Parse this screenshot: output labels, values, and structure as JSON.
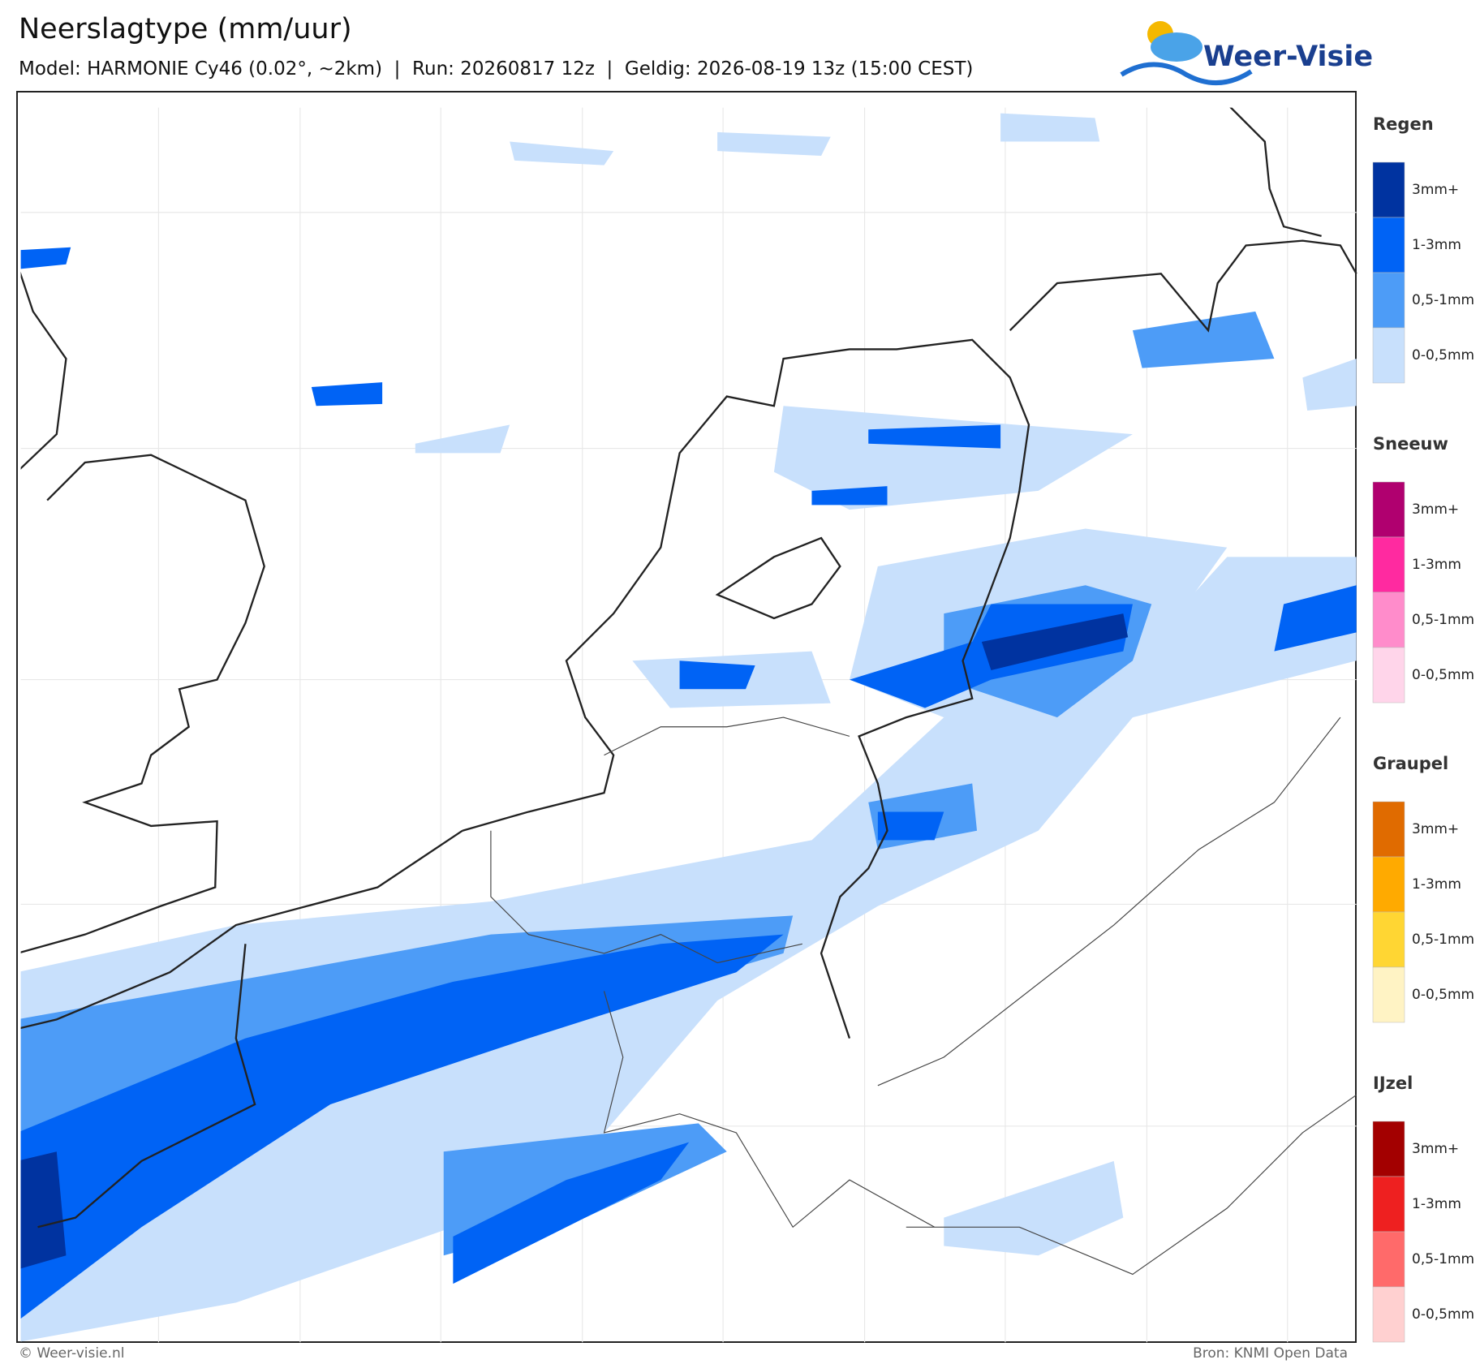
{
  "header": {
    "title": "Neerslagtype (mm/uur)",
    "subtitle": "Model: HARMONIE Cy46 (0.02°, ~2km)  |  Run: 20260817 12z  |  Geldig: 2026-08-19 13z (15:00 CEST)",
    "logo": "Weer-Visie"
  },
  "legend": [
    {
      "name": "Regen",
      "items": [
        {
          "label": "3mm+",
          "color": "#0033a0"
        },
        {
          "label": "1-3mm",
          "color": "#0063f5"
        },
        {
          "label": "0,5-1mm",
          "color": "#4d9cf7"
        },
        {
          "label": "0-0,5mm",
          "color": "#c8e0fc"
        }
      ]
    },
    {
      "name": "Sneeuw",
      "items": [
        {
          "label": "3mm+",
          "color": "#b0006f"
        },
        {
          "label": "1-3mm",
          "color": "#ff2aa0"
        },
        {
          "label": "0,5-1mm",
          "color": "#ff8ccb"
        },
        {
          "label": "0-0,5mm",
          "color": "#ffd5ea"
        }
      ]
    },
    {
      "name": "Graupel",
      "items": [
        {
          "label": "3mm+",
          "color": "#e06b00"
        },
        {
          "label": "1-3mm",
          "color": "#ffaa00"
        },
        {
          "label": "0,5-1mm",
          "color": "#ffd633"
        },
        {
          "label": "0-0,5mm",
          "color": "#fff3c4"
        }
      ]
    },
    {
      "name": "IJzel",
      "items": [
        {
          "label": "3mm+",
          "color": "#a30000"
        },
        {
          "label": "1-3mm",
          "color": "#ee2020"
        },
        {
          "label": "0,5-1mm",
          "color": "#ff6a6a"
        },
        {
          "label": "0-0,5mm",
          "color": "#ffd0d0"
        }
      ]
    }
  ],
  "footer": {
    "left": "© Weer-visie.nl",
    "right": "Bron: KNMI Open Data"
  }
}
